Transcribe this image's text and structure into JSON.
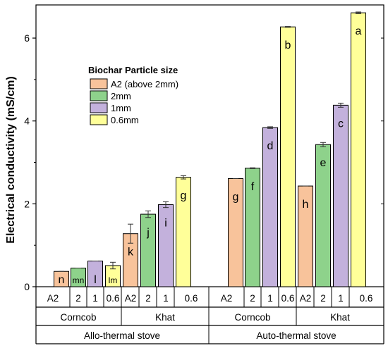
{
  "chart_data": {
    "type": "bar",
    "ylabel": "Electrical conductivity (mS/cm)",
    "ylim": [
      0,
      6.8
    ],
    "yticks": [
      0,
      2,
      4,
      6
    ],
    "legend": {
      "title": "Biochar Particle size",
      "placement": "top-left",
      "items": [
        {
          "label": "A2 (above 2mm)",
          "color": "#f8c39b"
        },
        {
          "label": "2mm",
          "color": "#8ed28b"
        },
        {
          "label": "1mm",
          "color": "#c3b1dc"
        },
        {
          "label": "0.6mm",
          "color": "#ffff99"
        }
      ]
    },
    "bars": [
      {
        "size": "A2",
        "stove": "Allo-thermal stove",
        "feedstock": "Corncob",
        "value": 0.37,
        "error": 0,
        "letter": "n"
      },
      {
        "size": "2",
        "stove": "Allo-thermal stove",
        "feedstock": "Corncob",
        "value": 0.45,
        "error": 0,
        "letter": "mn"
      },
      {
        "size": "1",
        "stove": "Allo-thermal stove",
        "feedstock": "Corncob",
        "value": 0.62,
        "error": 0,
        "letter": "l"
      },
      {
        "size": "0.6",
        "stove": "Allo-thermal stove",
        "feedstock": "Corncob",
        "value": 0.51,
        "error": 0.08,
        "letter": "lm"
      },
      {
        "size": "A2",
        "stove": "Allo-thermal stove",
        "feedstock": "Khat",
        "value": 1.28,
        "error": 0.23,
        "letter": "k"
      },
      {
        "size": "2",
        "stove": "Allo-thermal stove",
        "feedstock": "Khat",
        "value": 1.75,
        "error": 0.08,
        "letter": "j"
      },
      {
        "size": "1",
        "stove": "Allo-thermal stove",
        "feedstock": "Khat",
        "value": 1.98,
        "error": 0.07,
        "letter": "i"
      },
      {
        "size": "0.6",
        "stove": "Allo-thermal stove",
        "feedstock": "Khat",
        "value": 2.64,
        "error": 0.04,
        "letter": "g"
      },
      {
        "size": "A2",
        "stove": "Auto-thermal stove",
        "feedstock": "Corncob",
        "value": 2.61,
        "error": 0,
        "letter": "g"
      },
      {
        "size": "2",
        "stove": "Auto-thermal stove",
        "feedstock": "Corncob",
        "value": 2.86,
        "error": 0.01,
        "letter": "f"
      },
      {
        "size": "1",
        "stove": "Auto-thermal stove",
        "feedstock": "Corncob",
        "value": 3.84,
        "error": 0.02,
        "letter": "d"
      },
      {
        "size": "0.6",
        "stove": "Auto-thermal stove",
        "feedstock": "Corncob",
        "value": 6.27,
        "error": 0.01,
        "letter": "b"
      },
      {
        "size": "A2",
        "stove": "Auto-thermal stove",
        "feedstock": "Khat",
        "value": 2.43,
        "error": 0,
        "letter": "h"
      },
      {
        "size": "2",
        "stove": "Auto-thermal stove",
        "feedstock": "Khat",
        "value": 3.43,
        "error": 0.05,
        "letter": "e"
      },
      {
        "size": "1",
        "stove": "Auto-thermal stove",
        "feedstock": "Khat",
        "value": 4.38,
        "error": 0.05,
        "letter": "c"
      },
      {
        "size": "0.6",
        "stove": "Auto-thermal stove",
        "feedstock": "Khat",
        "value": 6.61,
        "error": 0.02,
        "letter": "a"
      }
    ],
    "feedstock_groups": [
      "Corncob",
      "Khat",
      "Corncob",
      "Khat"
    ],
    "stove_groups": [
      "Allo-thermal stove",
      "Auto-thermal stove"
    ]
  }
}
